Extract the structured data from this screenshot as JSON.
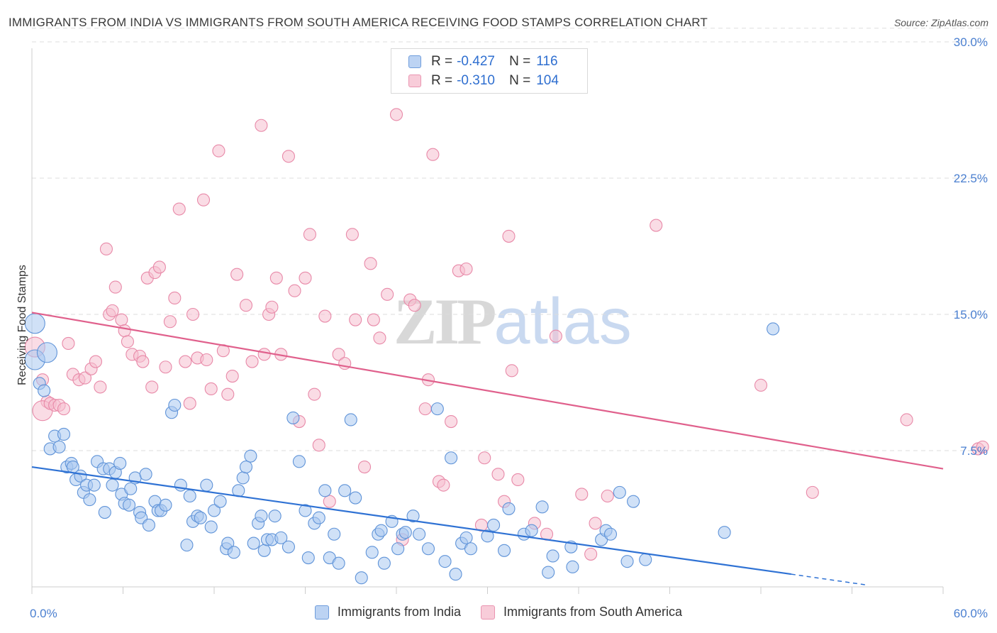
{
  "title": "IMMIGRANTS FROM INDIA VS IMMIGRANTS FROM SOUTH AMERICA RECEIVING FOOD STAMPS CORRELATION CHART",
  "source": "Source: ZipAtlas.com",
  "watermark": {
    "zip": "ZIP",
    "atlas": "atlas"
  },
  "legend": {
    "india": {
      "r_label": "R =",
      "r_value": "-0.427",
      "n_label": "N =",
      "n_value": "116"
    },
    "south_america": {
      "r_label": "R =",
      "r_value": "-0.310",
      "n_label": "N =",
      "n_value": "104"
    }
  },
  "bottom_legend": {
    "india": "Immigrants from India",
    "south_america": "Immigrants from South America"
  },
  "colors": {
    "india_fill": "#a9c8f0",
    "india_stroke": "#5f93d8",
    "india_line": "#2f72d4",
    "sa_fill": "#f6bfd0",
    "sa_stroke": "#e889a8",
    "sa_line": "#e0608c",
    "grid": "#dddddd",
    "axis_text": "#4a7fd0"
  },
  "chart_data": {
    "type": "scatter",
    "title": "IMMIGRANTS FROM INDIA VS IMMIGRANTS FROM SOUTH AMERICA RECEIVING FOOD STAMPS CORRELATION CHART",
    "xlabel": "",
    "ylabel": "Receiving Food Stamps",
    "xlim": [
      0,
      60
    ],
    "ylim": [
      0,
      31
    ],
    "x_tick_labels": [
      "0.0%",
      "60.0%"
    ],
    "y_ticks": [
      7.5,
      15.0,
      22.5,
      30.0
    ],
    "y_tick_labels": [
      "7.5%",
      "15.0%",
      "22.5%",
      "30.0%"
    ],
    "grid": "horizontal dashed",
    "series": [
      {
        "name": "Immigrants from India",
        "trend": {
          "x": [
            0,
            50
          ],
          "y": [
            6.6,
            0.7
          ],
          "dashed_extension_to": [
            55,
            0.1
          ]
        },
        "points": [
          [
            0.2,
            14.5
          ],
          [
            0.2,
            12.5
          ],
          [
            0.5,
            11.2
          ],
          [
            0.8,
            10.8
          ],
          [
            1.0,
            12.9
          ],
          [
            1.5,
            8.3
          ],
          [
            1.2,
            7.6
          ],
          [
            1.8,
            7.7
          ],
          [
            2.1,
            8.4
          ],
          [
            2.3,
            6.6
          ],
          [
            2.6,
            6.8
          ],
          [
            2.7,
            6.6
          ],
          [
            2.9,
            5.9
          ],
          [
            3.2,
            6.1
          ],
          [
            3.4,
            5.2
          ],
          [
            3.6,
            5.6
          ],
          [
            3.8,
            4.8
          ],
          [
            4.1,
            5.6
          ],
          [
            4.3,
            6.9
          ],
          [
            4.7,
            6.5
          ],
          [
            4.8,
            4.1
          ],
          [
            5.1,
            6.5
          ],
          [
            5.3,
            5.6
          ],
          [
            5.5,
            6.3
          ],
          [
            5.8,
            6.8
          ],
          [
            5.9,
            5.1
          ],
          [
            6.1,
            4.6
          ],
          [
            6.4,
            4.5
          ],
          [
            6.5,
            5.4
          ],
          [
            6.8,
            6.0
          ],
          [
            7.1,
            4.1
          ],
          [
            7.2,
            3.8
          ],
          [
            7.5,
            6.2
          ],
          [
            7.7,
            3.4
          ],
          [
            8.1,
            4.7
          ],
          [
            8.3,
            4.2
          ],
          [
            8.5,
            4.2
          ],
          [
            8.8,
            4.5
          ],
          [
            9.2,
            9.6
          ],
          [
            9.4,
            10.0
          ],
          [
            9.8,
            5.6
          ],
          [
            10.2,
            2.3
          ],
          [
            10.4,
            5.0
          ],
          [
            10.6,
            3.6
          ],
          [
            10.9,
            3.9
          ],
          [
            11.1,
            3.8
          ],
          [
            11.5,
            5.6
          ],
          [
            11.8,
            3.3
          ],
          [
            12.0,
            4.2
          ],
          [
            12.4,
            4.7
          ],
          [
            12.8,
            2.1
          ],
          [
            12.9,
            2.4
          ],
          [
            13.3,
            1.9
          ],
          [
            13.6,
            5.3
          ],
          [
            13.9,
            6.0
          ],
          [
            14.1,
            6.6
          ],
          [
            14.4,
            7.2
          ],
          [
            14.6,
            2.4
          ],
          [
            14.9,
            3.5
          ],
          [
            15.1,
            3.9
          ],
          [
            15.3,
            2.0
          ],
          [
            15.5,
            2.6
          ],
          [
            15.8,
            2.6
          ],
          [
            16.0,
            3.9
          ],
          [
            16.4,
            2.7
          ],
          [
            16.9,
            2.2
          ],
          [
            17.2,
            9.3
          ],
          [
            17.6,
            6.9
          ],
          [
            18.0,
            4.2
          ],
          [
            18.2,
            1.6
          ],
          [
            18.6,
            3.5
          ],
          [
            18.9,
            3.8
          ],
          [
            19.3,
            5.3
          ],
          [
            19.6,
            1.6
          ],
          [
            19.9,
            2.9
          ],
          [
            20.2,
            1.3
          ],
          [
            20.6,
            5.3
          ],
          [
            21.0,
            9.2
          ],
          [
            21.3,
            4.9
          ],
          [
            21.7,
            0.5
          ],
          [
            22.4,
            1.9
          ],
          [
            22.8,
            2.9
          ],
          [
            23.0,
            3.1
          ],
          [
            23.2,
            1.3
          ],
          [
            23.7,
            3.6
          ],
          [
            24.1,
            2.1
          ],
          [
            24.4,
            2.9
          ],
          [
            24.6,
            3.0
          ],
          [
            25.1,
            3.9
          ],
          [
            25.5,
            2.9
          ],
          [
            26.1,
            2.1
          ],
          [
            26.7,
            9.8
          ],
          [
            27.2,
            1.4
          ],
          [
            27.6,
            7.1
          ],
          [
            27.9,
            0.7
          ],
          [
            28.3,
            2.4
          ],
          [
            28.6,
            2.7
          ],
          [
            28.9,
            2.1
          ],
          [
            30.0,
            2.8
          ],
          [
            30.4,
            3.4
          ],
          [
            31.1,
            2.0
          ],
          [
            31.4,
            4.3
          ],
          [
            32.4,
            2.9
          ],
          [
            32.9,
            3.1
          ],
          [
            33.6,
            4.4
          ],
          [
            34.0,
            0.8
          ],
          [
            34.3,
            1.7
          ],
          [
            35.5,
            2.2
          ],
          [
            35.6,
            1.1
          ],
          [
            37.5,
            2.6
          ],
          [
            37.8,
            3.1
          ],
          [
            38.1,
            2.9
          ],
          [
            38.7,
            5.2
          ],
          [
            39.2,
            1.4
          ],
          [
            39.6,
            4.7
          ],
          [
            40.4,
            1.5
          ],
          [
            45.6,
            3.0
          ],
          [
            48.8,
            14.2
          ]
        ]
      },
      {
        "name": "Immigrants from South America",
        "trend": {
          "x": [
            0,
            60
          ],
          "y": [
            15.1,
            6.5
          ]
        },
        "points": [
          [
            0.2,
            13.2
          ],
          [
            0.7,
            11.4
          ],
          [
            1.0,
            10.2
          ],
          [
            0.7,
            9.7
          ],
          [
            1.2,
            10.1
          ],
          [
            1.5,
            10.0
          ],
          [
            1.8,
            10.0
          ],
          [
            2.1,
            9.8
          ],
          [
            2.4,
            13.4
          ],
          [
            2.7,
            11.7
          ],
          [
            3.1,
            11.4
          ],
          [
            3.5,
            11.5
          ],
          [
            3.9,
            12.0
          ],
          [
            4.2,
            12.4
          ],
          [
            4.5,
            11.0
          ],
          [
            4.9,
            18.6
          ],
          [
            5.1,
            15.0
          ],
          [
            5.3,
            15.2
          ],
          [
            5.5,
            16.5
          ],
          [
            5.9,
            14.7
          ],
          [
            6.1,
            14.1
          ],
          [
            6.3,
            13.5
          ],
          [
            6.6,
            12.8
          ],
          [
            7.1,
            12.7
          ],
          [
            7.3,
            12.4
          ],
          [
            7.6,
            17.0
          ],
          [
            7.9,
            11.0
          ],
          [
            8.1,
            17.3
          ],
          [
            8.4,
            17.6
          ],
          [
            8.8,
            12.1
          ],
          [
            9.1,
            14.6
          ],
          [
            9.4,
            15.9
          ],
          [
            9.7,
            20.8
          ],
          [
            10.1,
            12.4
          ],
          [
            10.4,
            10.1
          ],
          [
            10.6,
            15.0
          ],
          [
            10.9,
            12.6
          ],
          [
            11.3,
            21.3
          ],
          [
            11.5,
            12.5
          ],
          [
            11.8,
            10.9
          ],
          [
            12.3,
            24.0
          ],
          [
            12.6,
            13.0
          ],
          [
            12.9,
            10.6
          ],
          [
            13.2,
            11.6
          ],
          [
            13.5,
            17.2
          ],
          [
            14.1,
            15.5
          ],
          [
            14.5,
            12.4
          ],
          [
            15.1,
            25.4
          ],
          [
            15.3,
            12.8
          ],
          [
            15.6,
            15.0
          ],
          [
            15.8,
            15.4
          ],
          [
            16.1,
            17.0
          ],
          [
            16.4,
            12.8
          ],
          [
            16.9,
            23.7
          ],
          [
            17.3,
            16.3
          ],
          [
            17.6,
            9.1
          ],
          [
            18.0,
            17.0
          ],
          [
            18.3,
            19.4
          ],
          [
            18.6,
            10.6
          ],
          [
            18.9,
            7.8
          ],
          [
            19.3,
            14.9
          ],
          [
            19.6,
            4.7
          ],
          [
            20.2,
            12.8
          ],
          [
            20.6,
            12.3
          ],
          [
            21.1,
            19.4
          ],
          [
            21.3,
            14.7
          ],
          [
            21.9,
            6.6
          ],
          [
            22.3,
            17.8
          ],
          [
            22.5,
            14.7
          ],
          [
            22.9,
            13.7
          ],
          [
            23.4,
            16.1
          ],
          [
            24.0,
            26.0
          ],
          [
            24.4,
            2.6
          ],
          [
            24.9,
            15.8
          ],
          [
            25.2,
            15.5
          ],
          [
            25.9,
            9.8
          ],
          [
            26.1,
            11.4
          ],
          [
            26.4,
            23.8
          ],
          [
            26.8,
            5.8
          ],
          [
            27.1,
            5.6
          ],
          [
            27.6,
            9.1
          ],
          [
            28.1,
            17.4
          ],
          [
            28.6,
            17.5
          ],
          [
            29.6,
            3.4
          ],
          [
            29.8,
            7.1
          ],
          [
            30.7,
            6.2
          ],
          [
            31.1,
            4.7
          ],
          [
            31.4,
            19.3
          ],
          [
            31.6,
            11.9
          ],
          [
            32.0,
            5.9
          ],
          [
            33.1,
            3.5
          ],
          [
            33.9,
            2.9
          ],
          [
            34.5,
            13.8
          ],
          [
            36.2,
            5.1
          ],
          [
            36.8,
            1.8
          ],
          [
            37.1,
            3.5
          ],
          [
            37.9,
            5.0
          ],
          [
            41.1,
            19.9
          ],
          [
            48.0,
            11.1
          ],
          [
            51.4,
            5.2
          ],
          [
            57.6,
            9.2
          ],
          [
            62.3,
            7.6
          ],
          [
            62.6,
            7.7
          ]
        ]
      }
    ]
  }
}
